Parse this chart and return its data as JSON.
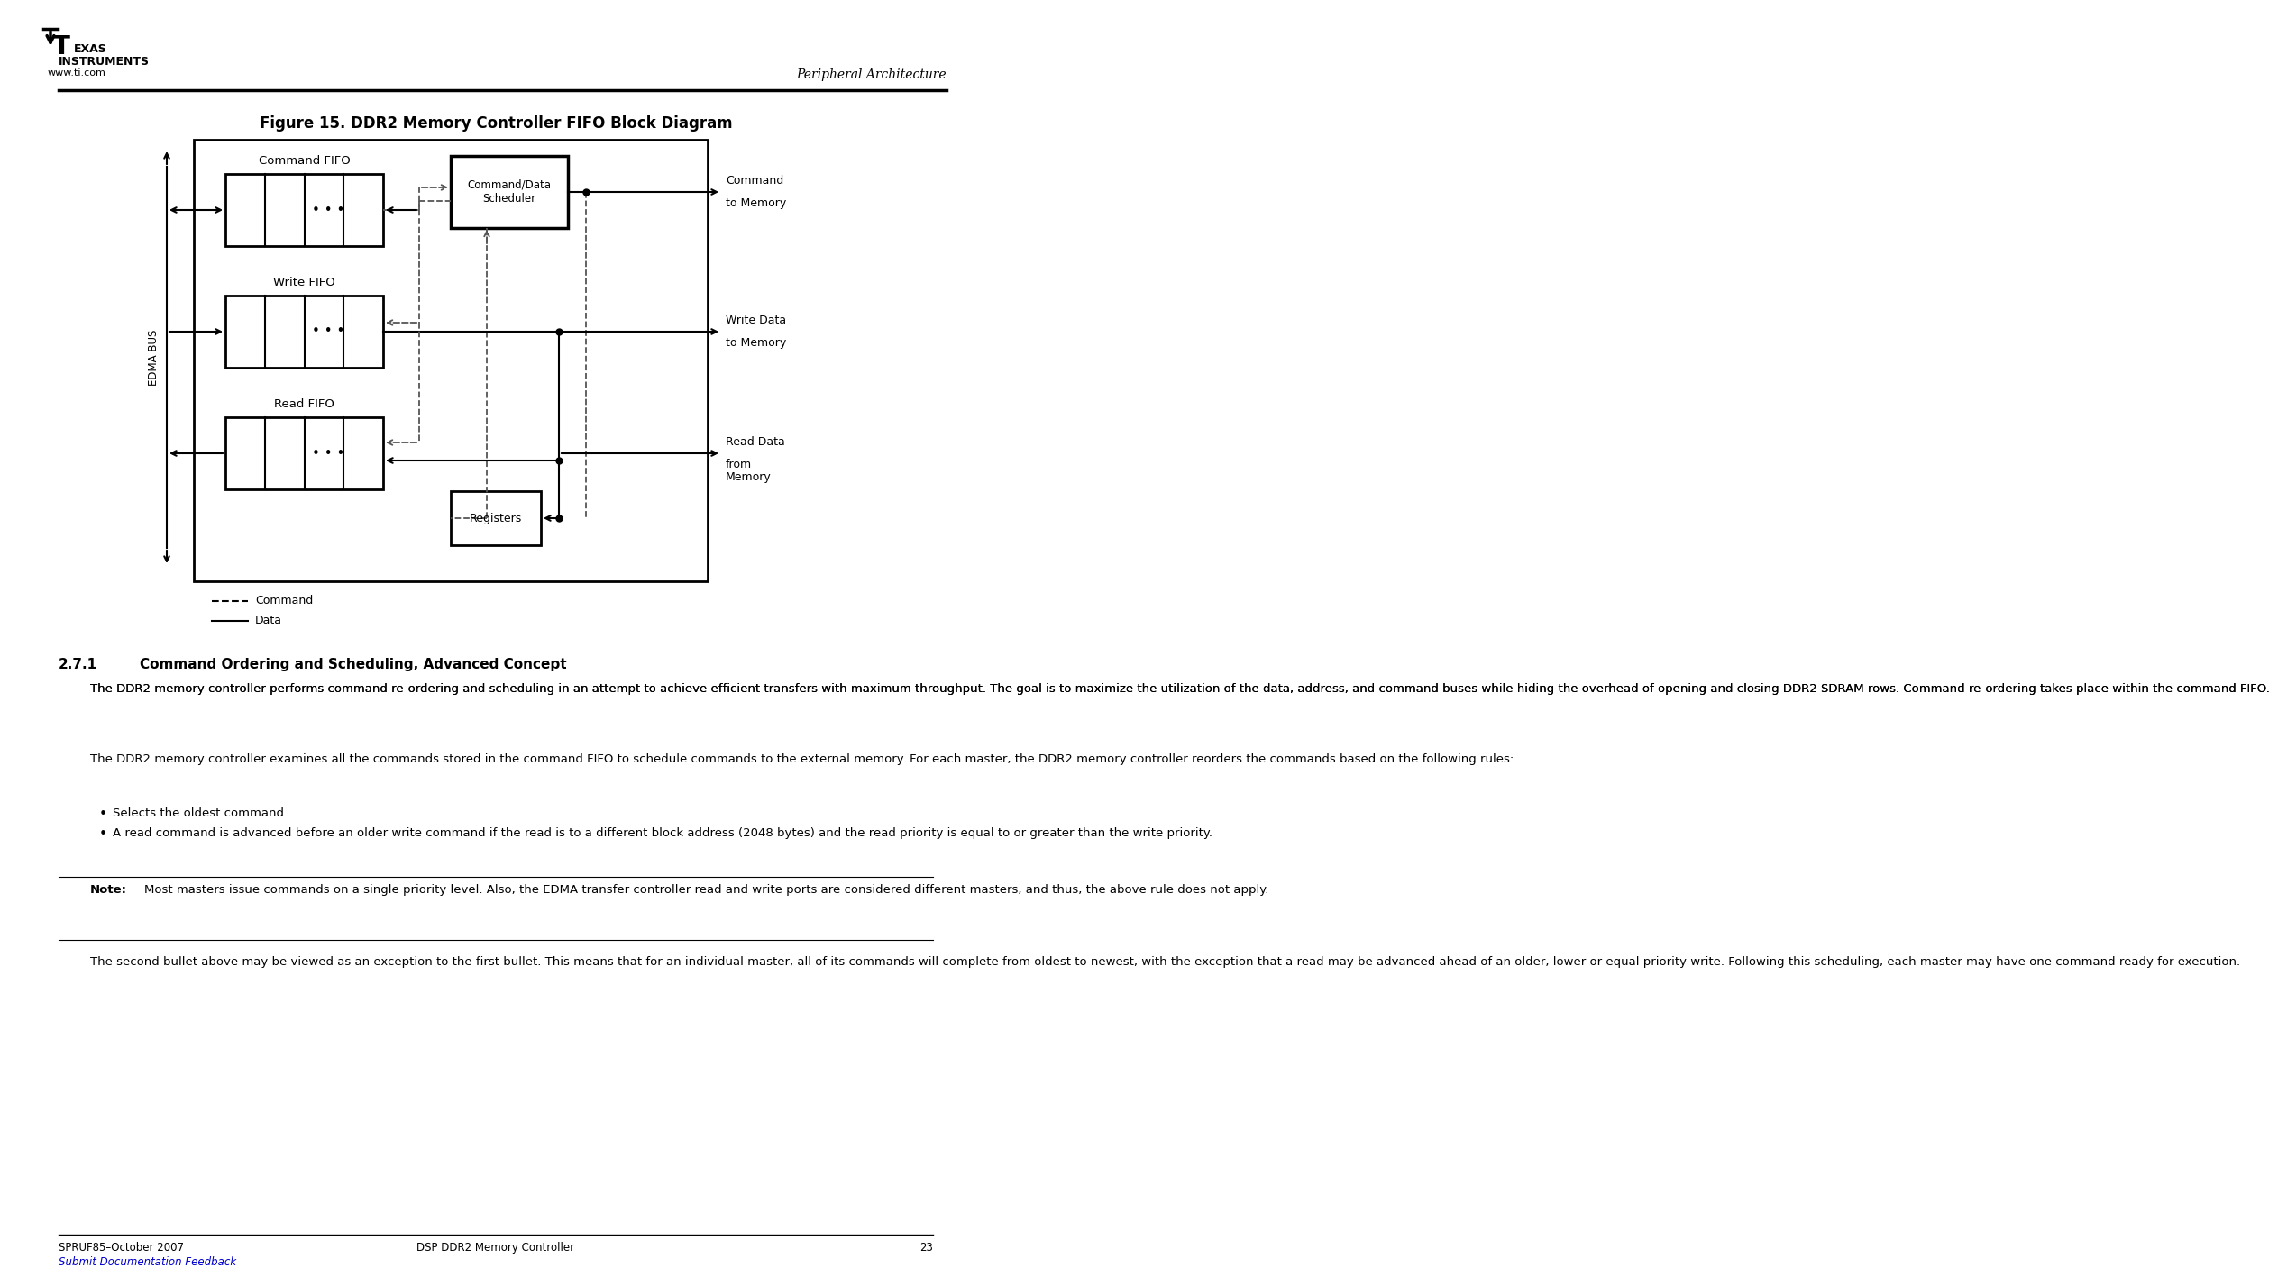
{
  "title": "Figure 15. DDR2 Memory Controller FIFO Block Diagram",
  "figure_label": "Figure 15. DDR2 Memory Controller FIFO Block Diagram",
  "section_title": "2.7.1    Command Ordering and Scheduling, Advanced Concept",
  "para1": "The DDR2 memory controller performs command re-ordering and scheduling in an attempt to achieve efficient transfers with maximum throughput. The goal is to maximize the utilization of the data, address, and command buses while hiding the overhead of opening and closing DDR2 SDRAM rows. Command re-ordering takes place within the command FIFO.",
  "para2": "The DDR2 memory controller examines all the commands stored in the command FIFO to schedule commands to the external memory. For each master, the DDR2 memory controller reorders the commands based on the following rules:",
  "bullet1": "Selects the oldest command",
  "bullet2": "A read command is advanced before an older write command if the read is to a different block address (2048 bytes) and the read priority is equal to or greater than the write priority.",
  "note_label": "Note:",
  "note_text": "Most masters issue commands on a single priority level. Also, the EDMA transfer controller read and write ports are considered different masters, and thus, the above rule does not apply.",
  "para3": "The second bullet above may be viewed as an exception to the first bullet. This means that for an individual master, all of its commands will complete from oldest to newest, with the exception that a read may be advanced ahead of an older, lower or equal priority write. Following this scheduling, each master may have one command ready for execution.",
  "footer_left": "SPRUF85–October 2007",
  "footer_center": "DSP DDR2 Memory Controller",
  "footer_page": "23",
  "footer_link": "Submit Documentation Feedback",
  "header_right": "Peripheral Architecture",
  "bg_color": "#ffffff",
  "box_color": "#000000",
  "dashed_color": "#888888"
}
